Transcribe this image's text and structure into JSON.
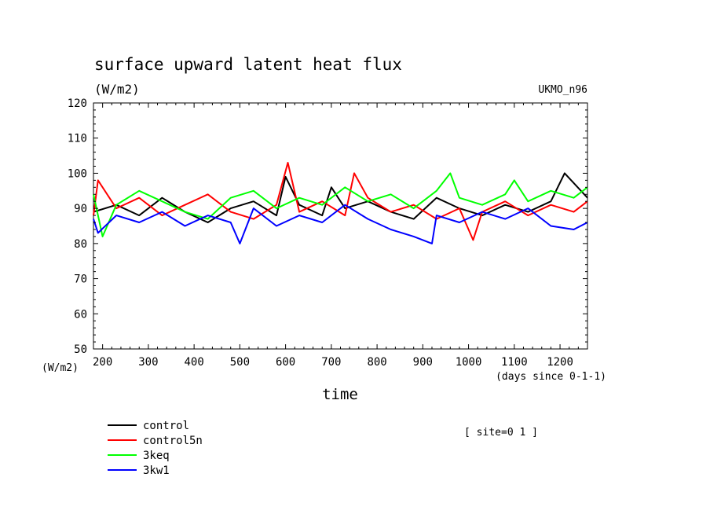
{
  "chart_data": {
    "type": "line",
    "title": "surface upward latent heat flux",
    "subtitle": "(W/m2)",
    "model_label": "UKMO_n96",
    "xlabel": "time",
    "x_unit_label": "(days since 0-1-1)",
    "y_unit_label": "(W/m2)",
    "site_label": "[ site=0 1 ]",
    "xlim": [
      180,
      1260
    ],
    "ylim": [
      50,
      120
    ],
    "x_ticks": [
      200,
      300,
      400,
      500,
      600,
      700,
      800,
      900,
      1000,
      1100,
      1200
    ],
    "y_ticks": [
      50,
      60,
      70,
      80,
      90,
      100,
      110,
      120
    ],
    "grid": false,
    "legend_position": "bottom-left",
    "series": [
      {
        "name": "control",
        "color": "#000000",
        "x": [
          180,
          230,
          280,
          330,
          380,
          430,
          480,
          530,
          580,
          600,
          630,
          680,
          700,
          730,
          780,
          830,
          880,
          930,
          980,
          1030,
          1080,
          1130,
          1180,
          1210,
          1260
        ],
        "y": [
          89,
          91,
          88,
          93,
          89,
          86,
          90,
          92,
          88,
          99,
          91,
          88,
          96,
          90,
          92,
          89,
          87,
          93,
          90,
          88,
          91,
          89,
          92,
          100,
          93
        ]
      },
      {
        "name": "control5n",
        "color": "#ff0000",
        "x": [
          180,
          190,
          230,
          280,
          330,
          380,
          430,
          480,
          530,
          580,
          605,
          630,
          680,
          730,
          750,
          780,
          830,
          880,
          930,
          980,
          1010,
          1030,
          1080,
          1130,
          1180,
          1230,
          1260
        ],
        "y": [
          88,
          98,
          90,
          93,
          88,
          91,
          94,
          89,
          87,
          91,
          103,
          89,
          92,
          88,
          100,
          93,
          89,
          91,
          87,
          90,
          81,
          89,
          92,
          88,
          91,
          89,
          92
        ]
      },
      {
        "name": "3keq",
        "color": "#00ff00",
        "x": [
          180,
          200,
          230,
          280,
          330,
          380,
          430,
          480,
          530,
          580,
          630,
          680,
          730,
          780,
          830,
          880,
          930,
          960,
          980,
          1030,
          1080,
          1100,
          1130,
          1180,
          1230,
          1260
        ],
        "y": [
          94,
          82,
          91,
          95,
          92,
          89,
          87,
          93,
          95,
          90,
          93,
          91,
          96,
          92,
          94,
          90,
          95,
          100,
          93,
          91,
          94,
          98,
          92,
          95,
          93,
          96
        ]
      },
      {
        "name": "3kw1",
        "color": "#0000ff",
        "x": [
          180,
          190,
          230,
          280,
          330,
          380,
          430,
          480,
          500,
          530,
          580,
          630,
          680,
          730,
          780,
          830,
          880,
          920,
          930,
          980,
          1030,
          1080,
          1130,
          1180,
          1230,
          1260
        ],
        "y": [
          87,
          83,
          88,
          86,
          89,
          85,
          88,
          86,
          80,
          90,
          85,
          88,
          86,
          91,
          87,
          84,
          82,
          80,
          88,
          86,
          89,
          87,
          90,
          85,
          84,
          86
        ]
      }
    ]
  }
}
